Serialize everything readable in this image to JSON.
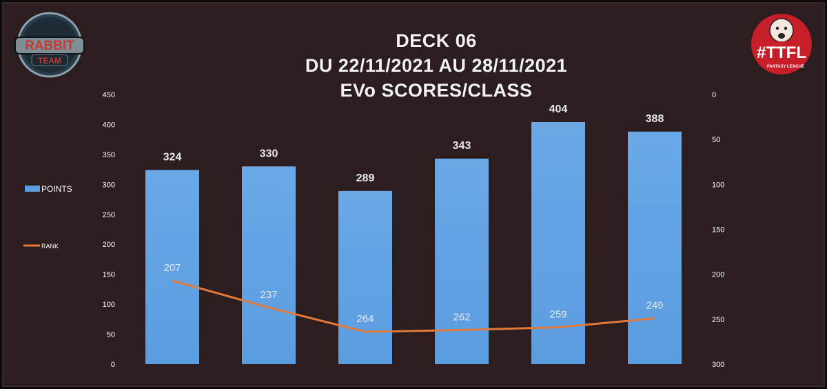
{
  "title_lines": [
    "DECK 06",
    "DU 22/11/2021 AU 28/11/2021",
    "EVo SCORES/CLASS"
  ],
  "logos": {
    "left": {
      "text_top": "RABBIT",
      "text_bottom": "TEAM"
    },
    "right": {
      "text": "#TTFL",
      "subtext": "FANTASY LEAGUE"
    }
  },
  "colors": {
    "bar": "#5a9de0",
    "line": "#e07a3a",
    "background": "#2c1d1f"
  },
  "chart_data": {
    "type": "bar",
    "categories": [
      "",
      "",
      "",
      "",
      "",
      ""
    ],
    "series": [
      {
        "name": "POINTS",
        "type": "bar",
        "axis": "left",
        "values": [
          324,
          330,
          289,
          343,
          404,
          388
        ]
      },
      {
        "name": "RANK",
        "type": "line",
        "axis": "right",
        "values": [
          207,
          237,
          264,
          262,
          259,
          249
        ]
      }
    ],
    "ylim": [
      0,
      450
    ],
    "yticks": [
      0,
      50,
      100,
      150,
      200,
      250,
      300,
      350,
      400,
      450
    ],
    "y2lim": [
      0,
      300
    ],
    "y2_inverted": true,
    "y2ticks": [
      0,
      50,
      100,
      150,
      200,
      250,
      300
    ],
    "legend": "left"
  }
}
